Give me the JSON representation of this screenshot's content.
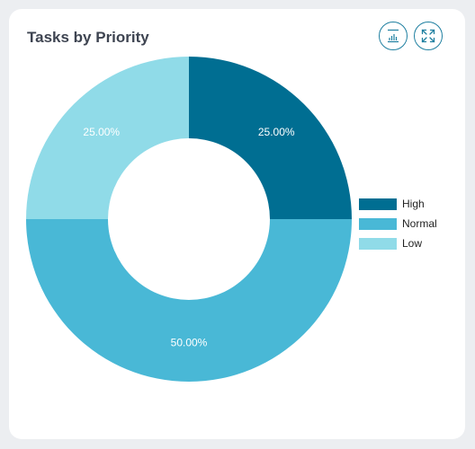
{
  "card": {
    "title": "Tasks by Priority"
  },
  "toolbar": {
    "chart_type_icon": "bar-chart-icon",
    "fullscreen_icon": "expand-icon"
  },
  "colors": {
    "background": "#eceef1",
    "card": "#ffffff",
    "title": "#3e4451",
    "icon_border": "#1e7fa0"
  },
  "chart_data": {
    "type": "pie",
    "variant": "donut",
    "title": "Tasks by Priority",
    "categories": [
      "High",
      "Normal",
      "Low"
    ],
    "values": [
      25,
      50,
      25
    ],
    "labels": [
      "25.00%",
      "50.00%",
      "25.00%"
    ],
    "colors": [
      "#006e92",
      "#49b8d6",
      "#90dbe8"
    ],
    "legend": "right"
  }
}
